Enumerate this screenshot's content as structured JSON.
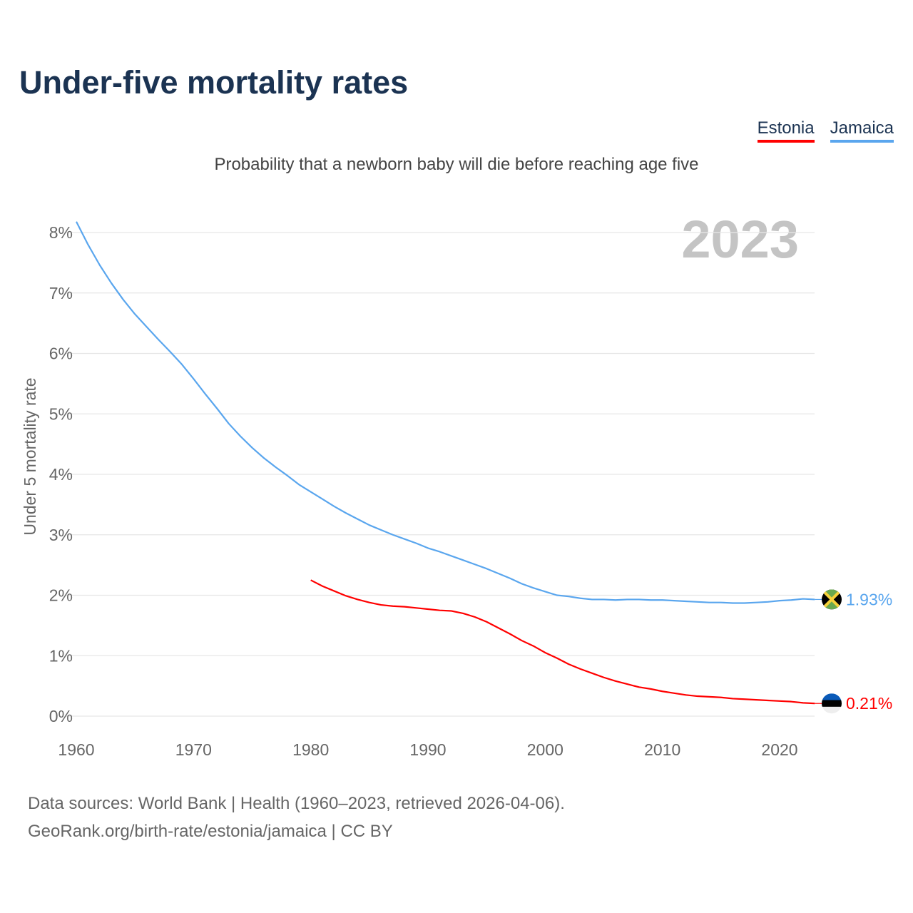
{
  "title": "Under-five mortality rates",
  "subtitle": "Probability that a newborn baby will die before reaching age five",
  "year_label": "2023",
  "source_line1": "Data sources: World Bank | Health (1960–2023, retrieved 2026-04-06).",
  "source_line2": "GeoRank.org/birth-rate/estonia/jamaica | CC BY",
  "chart_data": {
    "type": "line",
    "title": "Under-five mortality rates",
    "xlabel": "",
    "ylabel": "Under 5 mortality rate",
    "xlim": [
      1960,
      2023
    ],
    "ylim": [
      0,
      8
    ],
    "grid": true,
    "legend_position": "top-right",
    "xticks": [
      "1960",
      "1970",
      "1980",
      "1990",
      "2000",
      "2010",
      "2020"
    ],
    "yticks": [
      "0%",
      "1%",
      "2%",
      "3%",
      "4%",
      "5%",
      "6%",
      "7%",
      "8%"
    ],
    "series": [
      {
        "name": "Estonia",
        "color": "#ff0000",
        "end_label": "0.21%",
        "start_year": 1980,
        "values": [
          2.25,
          2.15,
          2.07,
          1.99,
          1.93,
          1.88,
          1.84,
          1.82,
          1.81,
          1.79,
          1.77,
          1.75,
          1.74,
          1.7,
          1.64,
          1.56,
          1.46,
          1.36,
          1.25,
          1.16,
          1.05,
          0.96,
          0.86,
          0.78,
          0.71,
          0.64,
          0.58,
          0.53,
          0.48,
          0.45,
          0.41,
          0.38,
          0.35,
          0.33,
          0.32,
          0.31,
          0.29,
          0.28,
          0.27,
          0.26,
          0.25,
          0.24,
          0.22,
          0.21
        ]
      },
      {
        "name": "Jamaica",
        "color": "#5aa6ee",
        "end_label": "1.93%",
        "start_year": 1960,
        "values": [
          8.18,
          7.8,
          7.46,
          7.16,
          6.89,
          6.65,
          6.44,
          6.23,
          6.03,
          5.82,
          5.58,
          5.33,
          5.09,
          4.84,
          4.63,
          4.44,
          4.27,
          4.12,
          3.98,
          3.83,
          3.71,
          3.59,
          3.47,
          3.36,
          3.26,
          3.16,
          3.08,
          3.0,
          2.93,
          2.86,
          2.78,
          2.72,
          2.65,
          2.58,
          2.51,
          2.44,
          2.36,
          2.28,
          2.19,
          2.12,
          2.06,
          2.0,
          1.98,
          1.95,
          1.93,
          1.93,
          1.92,
          1.93,
          1.93,
          1.92,
          1.92,
          1.91,
          1.9,
          1.89,
          1.88,
          1.88,
          1.87,
          1.87,
          1.88,
          1.89,
          1.91,
          1.92,
          1.94,
          1.93
        ]
      }
    ]
  }
}
